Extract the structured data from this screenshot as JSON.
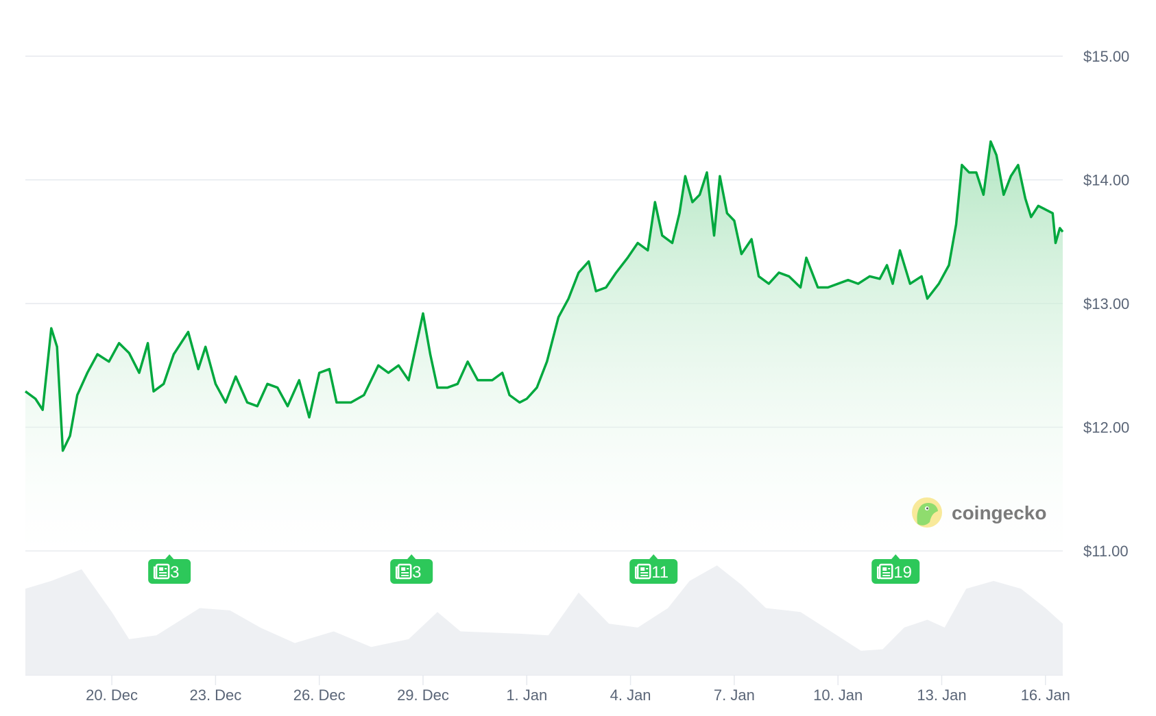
{
  "brand": {
    "name": "coingecko"
  },
  "colors": {
    "line": "#00a83e",
    "fill_top": "#b8e8c6",
    "grid": "#e6e9ee",
    "volume": "#eef0f3",
    "badge": "#2dc85a",
    "axis_text": "#5a6577"
  },
  "news_badges": [
    {
      "date": "12-21 16",
      "count": "3",
      "icon": "newspaper-icon"
    },
    {
      "date": "12-28 16",
      "count": "3",
      "icon": "newspaper-icon"
    },
    {
      "date": "01-04 16",
      "count": "11",
      "icon": "newspaper-icon"
    },
    {
      "date": "01-11 16",
      "count": "19",
      "icon": "newspaper-icon"
    }
  ],
  "chart_data": {
    "type": "area",
    "grid": true,
    "ylim": [
      11,
      15
    ],
    "y_ticks": [
      "$15.00",
      "$14.00",
      "$13.00",
      "$12.00",
      "$11.00"
    ],
    "y_tick_values": [
      15,
      14,
      13,
      12,
      11
    ],
    "x_ticks": [
      "20. Dec",
      "23. Dec",
      "26. Dec",
      "29. Dec",
      "1. Jan",
      "4. Jan",
      "7. Jan",
      "10. Jan",
      "13. Jan",
      "16. Jan"
    ],
    "x_tick_dates": [
      "12-20 0",
      "12-23 0",
      "12-26 0",
      "12-29 0",
      "01-01 0",
      "01-04 0",
      "01-07 0",
      "01-10 0",
      "01-13 0",
      "01-16 0"
    ],
    "x_range": [
      "12-17 12",
      "01-16 12"
    ],
    "price": [
      [
        "12-17 12",
        12.29
      ],
      [
        "12-17 19",
        12.23
      ],
      [
        "12-18 0",
        12.14
      ],
      [
        "12-18 6",
        12.8
      ],
      [
        "12-18 10",
        12.65
      ],
      [
        "12-18 14",
        11.81
      ],
      [
        "12-18 19",
        11.93
      ],
      [
        "12-19 0",
        12.26
      ],
      [
        "12-19 7",
        12.44
      ],
      [
        "12-19 14",
        12.59
      ],
      [
        "12-19 22",
        12.53
      ],
      [
        "12-20 5",
        12.68
      ],
      [
        "12-20 12",
        12.6
      ],
      [
        "12-20 19",
        12.44
      ],
      [
        "12-21 1",
        12.68
      ],
      [
        "12-21 5",
        12.29
      ],
      [
        "12-21 12",
        12.35
      ],
      [
        "12-21 19",
        12.59
      ],
      [
        "12-22 5",
        12.77
      ],
      [
        "12-22 12",
        12.47
      ],
      [
        "12-22 17",
        12.65
      ],
      [
        "12-23 0",
        12.35
      ],
      [
        "12-23 7",
        12.2
      ],
      [
        "12-23 14",
        12.41
      ],
      [
        "12-23 22",
        12.2
      ],
      [
        "12-24 5",
        12.17
      ],
      [
        "12-24 12",
        12.35
      ],
      [
        "12-24 19",
        12.32
      ],
      [
        "12-25 2",
        12.17
      ],
      [
        "12-25 10",
        12.38
      ],
      [
        "12-25 17",
        12.08
      ],
      [
        "12-26 0",
        12.44
      ],
      [
        "12-26 7",
        12.47
      ],
      [
        "12-26 12",
        12.2
      ],
      [
        "12-26 22",
        12.2
      ],
      [
        "12-27 7",
        12.26
      ],
      [
        "12-27 17",
        12.5
      ],
      [
        "12-28 0",
        12.44
      ],
      [
        "12-28 7",
        12.5
      ],
      [
        "12-28 14",
        12.38
      ],
      [
        "12-29 0",
        12.92
      ],
      [
        "12-29 5",
        12.59
      ],
      [
        "12-29 10",
        12.32
      ],
      [
        "12-29 17",
        12.32
      ],
      [
        "12-30 0",
        12.35
      ],
      [
        "12-30 7",
        12.53
      ],
      [
        "12-30 14",
        12.38
      ],
      [
        "12-31 0",
        12.38
      ],
      [
        "12-31 7",
        12.44
      ],
      [
        "12-31 12",
        12.26
      ],
      [
        "12-31 19",
        12.2
      ],
      [
        "01-01 0",
        12.23
      ],
      [
        "01-01 7",
        12.32
      ],
      [
        "01-01 14",
        12.53
      ],
      [
        "01-01 22",
        12.89
      ],
      [
        "01-02 5",
        13.04
      ],
      [
        "01-02 12",
        13.25
      ],
      [
        "01-02 19",
        13.34
      ],
      [
        "01-03 0",
        13.1
      ],
      [
        "01-03 7",
        13.13
      ],
      [
        "01-03 14",
        13.25
      ],
      [
        "01-03 22",
        13.37
      ],
      [
        "01-04 5",
        13.49
      ],
      [
        "01-04 12",
        13.43
      ],
      [
        "01-04 17",
        13.82
      ],
      [
        "01-04 22",
        13.55
      ],
      [
        "01-05 5",
        13.49
      ],
      [
        "01-05 10",
        13.73
      ],
      [
        "01-05 14",
        14.03
      ],
      [
        "01-05 19",
        13.82
      ],
      [
        "01-06 0",
        13.88
      ],
      [
        "01-06 5",
        14.06
      ],
      [
        "01-06 10",
        13.55
      ],
      [
        "01-06 14",
        14.03
      ],
      [
        "01-06 19",
        13.73
      ],
      [
        "01-07 0",
        13.67
      ],
      [
        "01-07 5",
        13.4
      ],
      [
        "01-07 12",
        13.52
      ],
      [
        "01-07 17",
        13.22
      ],
      [
        "01-08 0",
        13.16
      ],
      [
        "01-08 7",
        13.25
      ],
      [
        "01-08 14",
        13.22
      ],
      [
        "01-08 22",
        13.13
      ],
      [
        "01-09 2",
        13.37
      ],
      [
        "01-09 10",
        13.13
      ],
      [
        "01-09 17",
        13.13
      ],
      [
        "01-10 7",
        13.19
      ],
      [
        "01-10 14",
        13.16
      ],
      [
        "01-10 22",
        13.22
      ],
      [
        "01-11 5",
        13.2
      ],
      [
        "01-11 10",
        13.31
      ],
      [
        "01-11 14",
        13.16
      ],
      [
        "01-11 19",
        13.43
      ],
      [
        "01-12 2",
        13.16
      ],
      [
        "01-12 10",
        13.22
      ],
      [
        "01-12 14",
        13.04
      ],
      [
        "01-12 22",
        13.16
      ],
      [
        "01-13 5",
        13.31
      ],
      [
        "01-13 10",
        13.64
      ],
      [
        "01-13 14",
        14.12
      ],
      [
        "01-13 19",
        14.06
      ],
      [
        "01-14 0",
        14.06
      ],
      [
        "01-14 5",
        13.88
      ],
      [
        "01-14 10",
        14.31
      ],
      [
        "01-14 14",
        14.2
      ],
      [
        "01-14 19",
        13.88
      ],
      [
        "01-15 0",
        14.03
      ],
      [
        "01-15 5",
        14.12
      ],
      [
        "01-15 10",
        13.85
      ],
      [
        "01-15 14",
        13.7
      ],
      [
        "01-15 19",
        13.79
      ],
      [
        "01-16 0",
        13.76
      ],
      [
        "01-16 5",
        13.73
      ],
      [
        "01-16 7",
        13.49
      ],
      [
        "01-16 10",
        13.61
      ],
      [
        "01-16 12",
        13.58
      ]
    ],
    "volume_relative": [
      [
        "12-17 12",
        111
      ],
      [
        "12-18 6",
        121
      ],
      [
        "12-19 3",
        136
      ],
      [
        "12-20 0",
        81
      ],
      [
        "12-20 12",
        46
      ],
      [
        "12-21 7",
        51
      ],
      [
        "12-22 13",
        86
      ],
      [
        "12-23 10",
        83
      ],
      [
        "12-24 7",
        61
      ],
      [
        "12-25 7",
        41
      ],
      [
        "12-26 10",
        56
      ],
      [
        "12-27 12",
        36
      ],
      [
        "12-28 14",
        46
      ],
      [
        "12-29 10",
        81
      ],
      [
        "12-30 2",
        56
      ],
      [
        "12-31 19",
        53
      ],
      [
        "01-01 15",
        51
      ],
      [
        "01-02 12",
        106
      ],
      [
        "01-03 9",
        66
      ],
      [
        "01-04 5",
        61
      ],
      [
        "01-05 2",
        86
      ],
      [
        "01-05 17",
        121
      ],
      [
        "01-06 12",
        141
      ],
      [
        "01-07 5",
        116
      ],
      [
        "01-07 22",
        86
      ],
      [
        "01-08 22",
        81
      ],
      [
        "01-09 19",
        56
      ],
      [
        "01-10 16",
        31
      ],
      [
        "01-11 7",
        33
      ],
      [
        "01-11 22",
        61
      ],
      [
        "01-12 14",
        71
      ],
      [
        "01-13 2",
        61
      ],
      [
        "01-13 17",
        111
      ],
      [
        "01-14 12",
        121
      ],
      [
        "01-15 7",
        111
      ],
      [
        "01-16 0",
        86
      ],
      [
        "01-16 12",
        66
      ]
    ]
  }
}
